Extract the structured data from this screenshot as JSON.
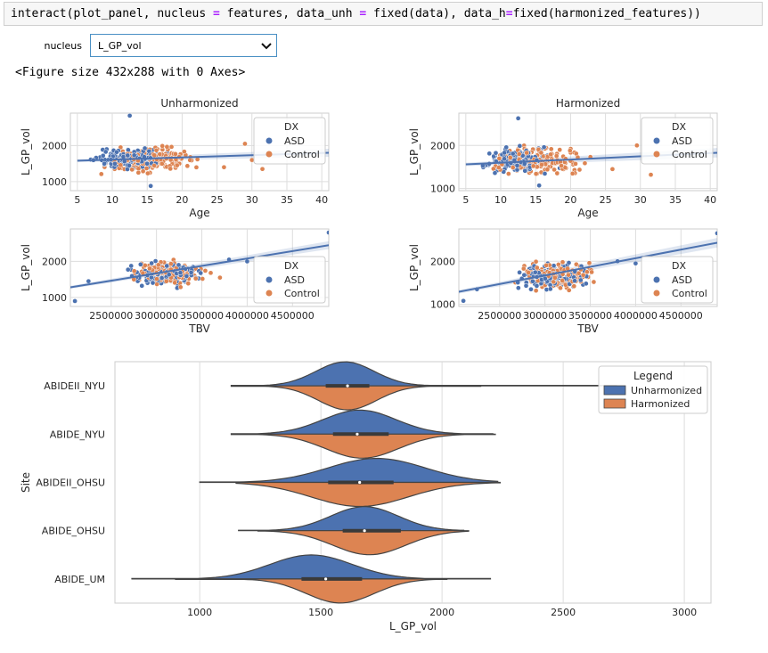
{
  "code_cell": {
    "parts": [
      {
        "text": "interact(plot_panel, nucleus ",
        "op": false
      },
      {
        "text": "=",
        "op": true
      },
      {
        "text": " features, data_unh ",
        "op": false
      },
      {
        "text": "=",
        "op": true
      },
      {
        "text": " fixed(data), data_h",
        "op": false
      },
      {
        "text": "=",
        "op": true
      },
      {
        "text": "fixed(harmonized_features))",
        "op": false
      }
    ]
  },
  "widget": {
    "label": "nucleus",
    "value": "L_GP_vol"
  },
  "figure_text": "<Figure size 432x288 with 0 Axes>",
  "colors": {
    "asd": "#4c72b0",
    "control": "#dd8452",
    "grid": "#dddddd",
    "edge": "#444444"
  },
  "legend_dx": {
    "title": "DX",
    "entries": [
      "ASD",
      "Control"
    ]
  },
  "chart_data": [
    {
      "id": "unh-age",
      "type": "scatter",
      "title": "Unharmonized",
      "xlabel": "Age",
      "ylabel": "L_GP_vol",
      "xlim": [
        4,
        41
      ],
      "ylim": [
        750,
        2900
      ],
      "xticks": [
        5,
        10,
        15,
        20,
        25,
        30,
        35,
        40
      ],
      "xtick_labels": [
        "5",
        "10",
        "15",
        "20",
        "25",
        "30",
        "35",
        "40"
      ],
      "yticks": [
        1000,
        2000
      ],
      "ytick_labels": [
        "1000",
        "2000"
      ],
      "regression": {
        "x0": 5,
        "y0": 1580,
        "x1": 41,
        "y1": 1800
      },
      "cluster": {
        "asd": {
          "x": [
            6,
            19
          ],
          "y": [
            1200,
            2050
          ]
        },
        "control": {
          "x": [
            7,
            24
          ],
          "y": [
            1150,
            2050
          ]
        }
      },
      "outliers": [
        {
          "x": 12.5,
          "y": 2830,
          "g": "asd"
        },
        {
          "x": 15.5,
          "y": 880,
          "g": "asd"
        },
        {
          "x": 29,
          "y": 2050,
          "g": "control"
        },
        {
          "x": 31.5,
          "y": 1350,
          "g": "control"
        },
        {
          "x": 26,
          "y": 1400,
          "g": "control"
        },
        {
          "x": 30,
          "y": 1600,
          "g": "control"
        }
      ],
      "legend": "DX"
    },
    {
      "id": "h-age",
      "type": "scatter",
      "title": "Harmonized",
      "xlabel": "Age",
      "ylabel": "L_GP_vol",
      "xlim": [
        4,
        41
      ],
      "ylim": [
        950,
        2750
      ],
      "xticks": [
        5,
        10,
        15,
        20,
        25,
        30,
        35,
        40
      ],
      "xtick_labels": [
        "5",
        "10",
        "15",
        "20",
        "25",
        "30",
        "35",
        "40"
      ],
      "yticks": [
        1000,
        2000
      ],
      "ytick_labels": [
        "1000",
        "2000"
      ],
      "regression": {
        "x0": 5,
        "y0": 1560,
        "x1": 41,
        "y1": 1830
      },
      "cluster": {
        "asd": {
          "x": [
            6,
            19
          ],
          "y": [
            1250,
            2050
          ]
        },
        "control": {
          "x": [
            7,
            24
          ],
          "y": [
            1200,
            2100
          ]
        }
      },
      "outliers": [
        {
          "x": 12.5,
          "y": 2630,
          "g": "asd"
        },
        {
          "x": 15.5,
          "y": 1070,
          "g": "asd"
        },
        {
          "x": 29.5,
          "y": 2000,
          "g": "control"
        },
        {
          "x": 31.5,
          "y": 1320,
          "g": "control"
        },
        {
          "x": 26,
          "y": 1450,
          "g": "control"
        }
      ],
      "legend": "DX"
    },
    {
      "id": "unh-tbv",
      "type": "scatter",
      "title": "",
      "xlabel": "TBV",
      "ylabel": "L_GP_vol",
      "xlim": [
        2050000,
        4900000
      ],
      "ylim": [
        750,
        2900
      ],
      "xticks": [
        2500000,
        3000000,
        3500000,
        4000000,
        4500000
      ],
      "xtick_labels": [
        "2500000",
        "3000000",
        "3500000",
        "4000000",
        "4500000"
      ],
      "yticks": [
        1000,
        2000
      ],
      "ytick_labels": [
        "1000",
        "2000"
      ],
      "regression": {
        "x0": 2050000,
        "y0": 1280,
        "x1": 4900000,
        "y1": 2450
      },
      "cluster": {
        "asd": {
          "x": [
            2550000,
            3600000
          ],
          "y": [
            1200,
            2050
          ]
        },
        "control": {
          "x": [
            2600000,
            3650000
          ],
          "y": [
            1250,
            2100
          ]
        }
      },
      "outliers": [
        {
          "x": 4900000,
          "y": 2800,
          "g": "asd"
        },
        {
          "x": 2100000,
          "y": 900,
          "g": "asd"
        },
        {
          "x": 2250000,
          "y": 1450,
          "g": "asd"
        },
        {
          "x": 4000000,
          "y": 2000,
          "g": "asd"
        },
        {
          "x": 3800000,
          "y": 2050,
          "g": "asd"
        },
        {
          "x": 3700000,
          "y": 1550,
          "g": "control"
        }
      ],
      "legend": "DX"
    },
    {
      "id": "h-tbv",
      "type": "scatter",
      "title": "",
      "xlabel": "TBV",
      "ylabel": "L_GP_vol",
      "xlim": [
        2050000,
        4900000
      ],
      "ylim": [
        950,
        2750
      ],
      "xticks": [
        2500000,
        3000000,
        3500000,
        4000000,
        4500000
      ],
      "xtick_labels": [
        "2500000",
        "3000000",
        "3500000",
        "4000000",
        "4500000"
      ],
      "yticks": [
        1000,
        2000
      ],
      "ytick_labels": [
        "1000",
        "2000"
      ],
      "regression": {
        "x0": 2050000,
        "y0": 1290,
        "x1": 4900000,
        "y1": 2430
      },
      "cluster": {
        "asd": {
          "x": [
            2550000,
            3650000
          ],
          "y": [
            1250,
            2050
          ]
        },
        "control": {
          "x": [
            2600000,
            3650000
          ],
          "y": [
            1250,
            2100
          ]
        }
      },
      "outliers": [
        {
          "x": 4900000,
          "y": 2650,
          "g": "asd"
        },
        {
          "x": 2100000,
          "y": 1080,
          "g": "asd"
        },
        {
          "x": 2250000,
          "y": 1350,
          "g": "asd"
        },
        {
          "x": 4000000,
          "y": 1950,
          "g": "asd"
        },
        {
          "x": 3800000,
          "y": 2000,
          "g": "asd"
        }
      ],
      "legend": "DX"
    },
    {
      "id": "violin",
      "type": "violin",
      "xlabel": "L_GP_vol",
      "ylabel": "Site",
      "xlim": [
        650,
        3110
      ],
      "xticks": [
        1000,
        1500,
        2000,
        2500,
        3000
      ],
      "xtick_labels": [
        "1000",
        "1500",
        "2000",
        "2500",
        "3000"
      ],
      "legend": {
        "title": "Legend",
        "entries": [
          "Unharmonized",
          "Harmonized"
        ]
      },
      "sites": [
        {
          "name": "ABIDEII_NYU",
          "unh": {
            "min": 1130,
            "max": 2720,
            "peak": 1600,
            "sd": 120
          },
          "h": {
            "min": 1130,
            "max": 2160,
            "peak": 1610,
            "sd": 120
          },
          "q1": 1520,
          "median": 1610,
          "q3": 1700
        },
        {
          "name": "ABIDE_NYU",
          "unh": {
            "min": 1130,
            "max": 2210,
            "peak": 1660,
            "sd": 150
          },
          "h": {
            "min": 1130,
            "max": 2220,
            "peak": 1670,
            "sd": 150
          },
          "q1": 1550,
          "median": 1650,
          "q3": 1780
        },
        {
          "name": "ABIDEII_OHSU",
          "unh": {
            "min": 1000,
            "max": 2230,
            "peak": 1730,
            "sd": 200
          },
          "h": {
            "min": 1150,
            "max": 2240,
            "peak": 1660,
            "sd": 200
          },
          "q1": 1530,
          "median": 1660,
          "q3": 1800
        },
        {
          "name": "ABIDE_OHSU",
          "unh": {
            "min": 1160,
            "max": 2090,
            "peak": 1680,
            "sd": 140
          },
          "h": {
            "min": 1240,
            "max": 2110,
            "peak": 1700,
            "sd": 150
          },
          "q1": 1590,
          "median": 1680,
          "q3": 1830
        },
        {
          "name": "ABIDE_UM",
          "unh": {
            "min": 720,
            "max": 2200,
            "peak": 1460,
            "sd": 170
          },
          "h": {
            "min": 900,
            "max": 2020,
            "peak": 1580,
            "sd": 140
          },
          "q1": 1420,
          "median": 1520,
          "q3": 1670
        }
      ]
    }
  ]
}
